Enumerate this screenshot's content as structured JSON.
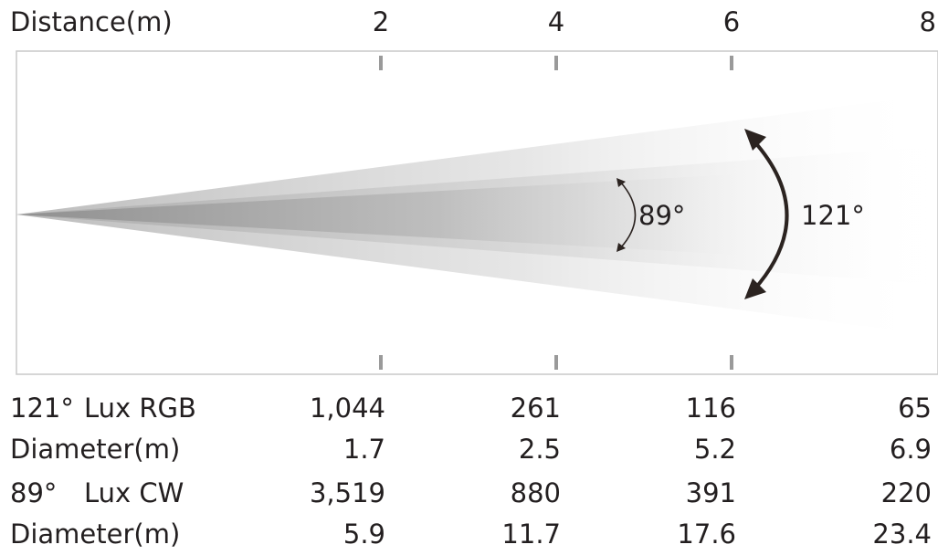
{
  "header": {
    "distance_label": "Distance(m)",
    "ticks": [
      "2",
      "4",
      "6",
      "8"
    ]
  },
  "beam": {
    "narrow_angle": "89°",
    "wide_angle": "121°",
    "gradient_color": "#9a9a9a",
    "arrow_color": "#2b2320",
    "frame_color": "#c8c8c8",
    "tick_color": "#9a9a9a"
  },
  "table": {
    "rows": [
      {
        "angle": "121°",
        "label": "Lux RGB",
        "values": [
          "1,044",
          "261",
          "116",
          "65"
        ]
      },
      {
        "angle": "",
        "label": "Diameter(m)",
        "values": [
          "1.7",
          "2.5",
          "5.2",
          "6.9"
        ]
      },
      {
        "angle": "89°",
        "label": "Lux CW",
        "values": [
          "3,519",
          "880",
          "391",
          "220"
        ]
      },
      {
        "angle": "",
        "label": "Diameter(m)",
        "values": [
          "5.9",
          "11.7",
          "17.6",
          "23.4"
        ]
      }
    ]
  }
}
